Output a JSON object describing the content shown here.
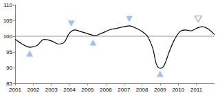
{
  "chart_data": {
    "type": "line",
    "xlim": [
      2001,
      2012
    ],
    "xticks": [
      2001,
      2002,
      2003,
      2004,
      2005,
      2006,
      2007,
      2008,
      2009,
      2010,
      2011
    ],
    "ylim": [
      85,
      110
    ],
    "yticks": [
      85,
      90,
      95,
      100,
      105,
      110
    ],
    "grid": false,
    "series": [
      {
        "type": "line",
        "color": "#808080",
        "marker": "none",
        "x": [
          2001,
          2012
        ],
        "values": [
          100,
          100
        ]
      },
      {
        "type": "line",
        "color": "#000000",
        "marker": "none",
        "x": [
          2001,
          2001.4,
          2001.8,
          2002.2,
          2002.6,
          2003.0,
          2003.4,
          2003.7,
          2004.0,
          2004.3,
          2004.6,
          2005.0,
          2005.4,
          2005.8,
          2006.2,
          2006.6,
          2007.0,
          2007.3,
          2007.7,
          2008.0,
          2008.3,
          2008.6,
          2008.8,
          2009.0,
          2009.2,
          2009.5,
          2009.8,
          2010.1,
          2010.4,
          2010.7,
          2011.0,
          2011.3,
          2011.6,
          2012.0
        ],
        "values": [
          99,
          97.5,
          96.5,
          97,
          99,
          98.5,
          97.5,
          98,
          101,
          102,
          101.5,
          100.8,
          100.2,
          101,
          102,
          102.5,
          103,
          103.3,
          102.5,
          101.5,
          100,
          96,
          91,
          89.8,
          90.5,
          95,
          99,
          101.5,
          102,
          101.7,
          102.5,
          103,
          102.5,
          100.5
        ]
      },
      {
        "type": "scatter",
        "color": "#8db3e2",
        "marker": "triangle",
        "x": [
          2001.8,
          2005.3,
          2009.0
        ],
        "values": [
          94.5,
          98,
          88
        ]
      },
      {
        "type": "scatter",
        "color": "#8db3e2",
        "marker": "triangle-down",
        "x": [
          2004.1,
          2007.3
        ],
        "values": [
          104,
          105.5
        ]
      },
      {
        "type": "scatter",
        "color": "#7f7f7f",
        "marker": "triangle-down-open",
        "x": [
          2011.1
        ],
        "values": [
          105.5
        ]
      }
    ]
  }
}
